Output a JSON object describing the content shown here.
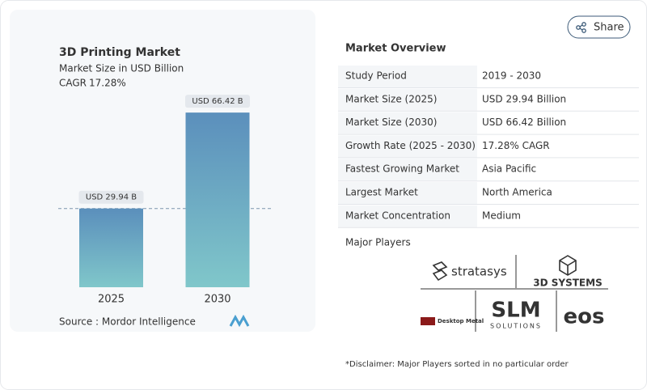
{
  "share_button": "Share",
  "chart_data": {
    "type": "bar",
    "title": "3D Printing Market",
    "subtitle": "Market Size in USD Billion",
    "cagr_label": "CAGR",
    "cagr_value": "17.28%",
    "categories": [
      "2025",
      "2030"
    ],
    "values": [
      29.94,
      66.42
    ],
    "value_labels": [
      "USD 29.94 B",
      "USD 66.42 B"
    ],
    "colors": [
      "#5b8fbc",
      "#80c7ca"
    ],
    "source": "Source :  Mordor Intelligence"
  },
  "market_overview": {
    "title": "Market Overview",
    "rows": [
      [
        "Study Period",
        "2019 - 2030"
      ],
      [
        "Market Size (2025)",
        "USD 29.94 Billion"
      ],
      [
        "Market Size (2030)",
        "USD 66.42 Billion"
      ],
      [
        "Growth Rate (2025 - 2030)",
        "17.28% CAGR"
      ],
      [
        "Fastest Growing Market",
        "Asia Pacific"
      ],
      [
        "Largest Market",
        "North America"
      ],
      [
        "Market Concentration",
        "Medium"
      ]
    ]
  },
  "major_players": {
    "title": "Major Players",
    "logos": [
      "stratasys",
      "3D SYSTEMS",
      "Desktop Metal",
      "SLM",
      "SOLUTIONS",
      "eos"
    ]
  },
  "disclaimer": "*Disclaimer: Major Players sorted in no particular order"
}
